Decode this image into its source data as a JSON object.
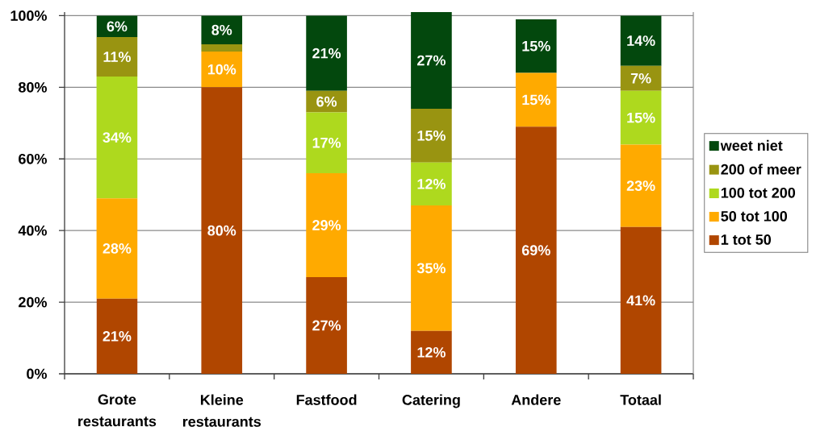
{
  "chart_data": {
    "type": "bar",
    "stacked": true,
    "categories": [
      "Grote restaurants",
      "Kleine restaurants",
      "Fastfood",
      "Catering",
      "Andere",
      "Totaal"
    ],
    "series": [
      {
        "name": "1 tot 50",
        "color": "#b04600",
        "values": [
          21,
          80,
          27,
          12,
          69,
          41
        ],
        "value_labels": [
          "21%",
          "80%",
          "27%",
          "12%",
          "69%",
          "41%"
        ]
      },
      {
        "name": "50 tot 100",
        "color": "#ffaa00",
        "values": [
          28,
          10,
          29,
          35,
          15,
          23
        ],
        "value_labels": [
          "28%",
          "10%",
          "29%",
          "35%",
          "15%",
          "23%"
        ]
      },
      {
        "name": "100 tot 200",
        "color": "#aed91e",
        "values": [
          34,
          0,
          17,
          12,
          0,
          15
        ],
        "value_labels": [
          "34%",
          null,
          "17%",
          "12%",
          null,
          "15%"
        ]
      },
      {
        "name": "200 of meer",
        "color": "#999411",
        "values": [
          11,
          2,
          6,
          15,
          0,
          7
        ],
        "value_labels": [
          "11%",
          null,
          "6%",
          "15%",
          null,
          "7%"
        ]
      },
      {
        "name": "weet niet",
        "color": "#03480d",
        "values": [
          6,
          8,
          21,
          27,
          15,
          14
        ],
        "value_labels": [
          "6%",
          "8%",
          "21%",
          "27%",
          "15%",
          "14%"
        ]
      }
    ],
    "ylim": [
      0,
      101
    ],
    "yticks": [
      {
        "value": 0,
        "label": "0%"
      },
      {
        "value": 20,
        "label": "20%"
      },
      {
        "value": 40,
        "label": "40%"
      },
      {
        "value": 60,
        "label": "60%"
      },
      {
        "value": 80,
        "label": "80%"
      },
      {
        "value": 100,
        "label": "100%"
      }
    ],
    "grid": "y",
    "legend": "right"
  }
}
